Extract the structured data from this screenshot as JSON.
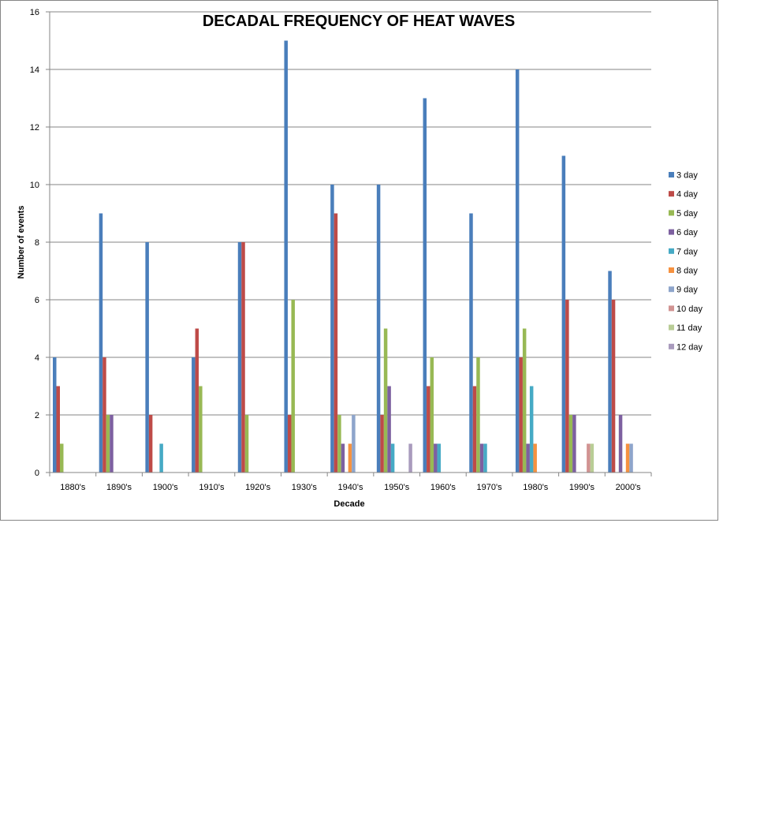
{
  "chart_data": {
    "type": "bar",
    "title": "DECADAL FREQUENCY OF HEAT WAVES",
    "xlabel": "Decade",
    "ylabel": "Number of events",
    "ylim": [
      0,
      16
    ],
    "yticks": [
      "0",
      "2",
      "4",
      "6",
      "8",
      "10",
      "12",
      "14",
      "16"
    ],
    "grid": true,
    "legend_position": "right",
    "categories": [
      "1880's",
      "1890's",
      "1900's",
      "1910's",
      "1920's",
      "1930's",
      "1940's",
      "1950's",
      "1960's",
      "1970's",
      "1980's",
      "1990's",
      "2000's"
    ],
    "series": [
      {
        "name": "3 day",
        "color": "#4A7EBB",
        "values": [
          4,
          9,
          8,
          4,
          8,
          15,
          10,
          10,
          13,
          9,
          14,
          11,
          7
        ]
      },
      {
        "name": "4 day",
        "color": "#BE4B48",
        "values": [
          3,
          4,
          2,
          5,
          8,
          2,
          9,
          2,
          3,
          3,
          4,
          6,
          6
        ]
      },
      {
        "name": "5 day",
        "color": "#98B954",
        "values": [
          1,
          2,
          0,
          3,
          2,
          6,
          2,
          5,
          4,
          4,
          5,
          2,
          0
        ]
      },
      {
        "name": "6 day",
        "color": "#7D60A0",
        "values": [
          0,
          2,
          0,
          0,
          0,
          0,
          1,
          3,
          1,
          1,
          1,
          2,
          2
        ]
      },
      {
        "name": "7 day",
        "color": "#46AAC5",
        "values": [
          0,
          0,
          1,
          0,
          0,
          0,
          0,
          1,
          1,
          1,
          3,
          0,
          0
        ]
      },
      {
        "name": "8 day",
        "color": "#F69240",
        "values": [
          0,
          0,
          0,
          0,
          0,
          0,
          1,
          0,
          0,
          0,
          1,
          0,
          1
        ]
      },
      {
        "name": "9 day",
        "color": "#8EA5CB",
        "values": [
          0,
          0,
          0,
          0,
          0,
          0,
          2,
          0,
          0,
          0,
          0,
          0,
          1
        ]
      },
      {
        "name": "10 day",
        "color": "#D19392",
        "values": [
          0,
          0,
          0,
          0,
          0,
          0,
          0,
          0,
          0,
          0,
          0,
          1,
          0
        ]
      },
      {
        "name": "11 day",
        "color": "#B9CD96",
        "values": [
          0,
          0,
          0,
          0,
          0,
          0,
          0,
          0,
          0,
          0,
          0,
          1,
          0
        ]
      },
      {
        "name": "12 day",
        "color": "#A99BBD",
        "values": [
          0,
          0,
          0,
          0,
          0,
          0,
          0,
          1,
          0,
          0,
          0,
          0,
          0
        ]
      }
    ]
  }
}
